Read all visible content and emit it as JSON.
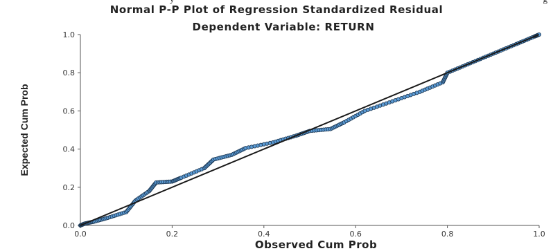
{
  "caption_fragments": {
    "left": "y",
    "right": "g"
  },
  "chart_data": {
    "type": "scatter",
    "title": "Normal P-P Plot of Regression Standardized Residual",
    "subtitle": "Dependent Variable: RETURN",
    "xlabel": "Observed Cum Prob",
    "ylabel": "Expected Cum Prob",
    "xlim": [
      0.0,
      1.0
    ],
    "ylim": [
      0.0,
      1.0
    ],
    "x_ticks": [
      "0.0",
      "0.2",
      "0.4",
      "0.6",
      "0.8",
      "1.0"
    ],
    "y_ticks": [
      "0.0",
      "0.2",
      "0.4",
      "0.6",
      "0.8",
      "1.0"
    ],
    "grid": false,
    "reference_line": {
      "from": [
        0.0,
        0.0
      ],
      "to": [
        1.0,
        1.0
      ]
    },
    "colors": {
      "marker_fill": "#5b9bd5",
      "marker_edge": "#1f3b57",
      "line": "#1a1a1a",
      "axis": "#555555"
    },
    "anchors": [
      [
        0.0,
        0.0
      ],
      [
        0.01,
        0.01
      ],
      [
        0.03,
        0.02
      ],
      [
        0.06,
        0.04
      ],
      [
        0.1,
        0.07
      ],
      [
        0.12,
        0.13
      ],
      [
        0.15,
        0.18
      ],
      [
        0.165,
        0.225
      ],
      [
        0.2,
        0.23
      ],
      [
        0.22,
        0.25
      ],
      [
        0.27,
        0.3
      ],
      [
        0.29,
        0.345
      ],
      [
        0.33,
        0.37
      ],
      [
        0.36,
        0.405
      ],
      [
        0.42,
        0.435
      ],
      [
        0.47,
        0.47
      ],
      [
        0.5,
        0.495
      ],
      [
        0.545,
        0.505
      ],
      [
        0.575,
        0.54
      ],
      [
        0.62,
        0.6
      ],
      [
        0.68,
        0.65
      ],
      [
        0.74,
        0.7
      ],
      [
        0.79,
        0.75
      ],
      [
        0.8,
        0.8
      ],
      [
        0.85,
        0.85
      ],
      [
        0.9,
        0.9
      ],
      [
        0.95,
        0.95
      ],
      [
        0.99,
        0.99
      ],
      [
        1.0,
        1.0
      ]
    ],
    "points_per_segment": 9
  }
}
